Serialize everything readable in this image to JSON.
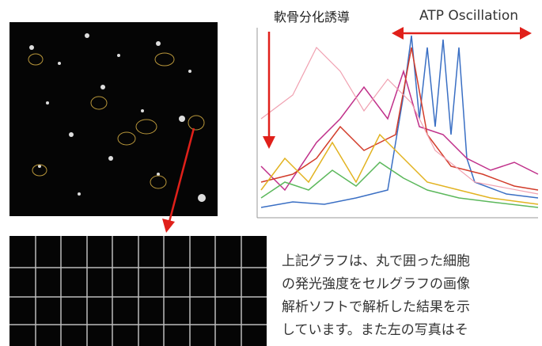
{
  "figure": {
    "annotation_left": "軟骨分化誘導",
    "annotation_right": "ATP Oscillation"
  },
  "paragraph": {
    "lines": [
      "上記グラフは、丸で囲った細胞",
      "の発光強度をセルグラフの画像",
      "解析ソフトで解析した結果を示",
      "しています。また左の写真はそ"
    ]
  }
}
